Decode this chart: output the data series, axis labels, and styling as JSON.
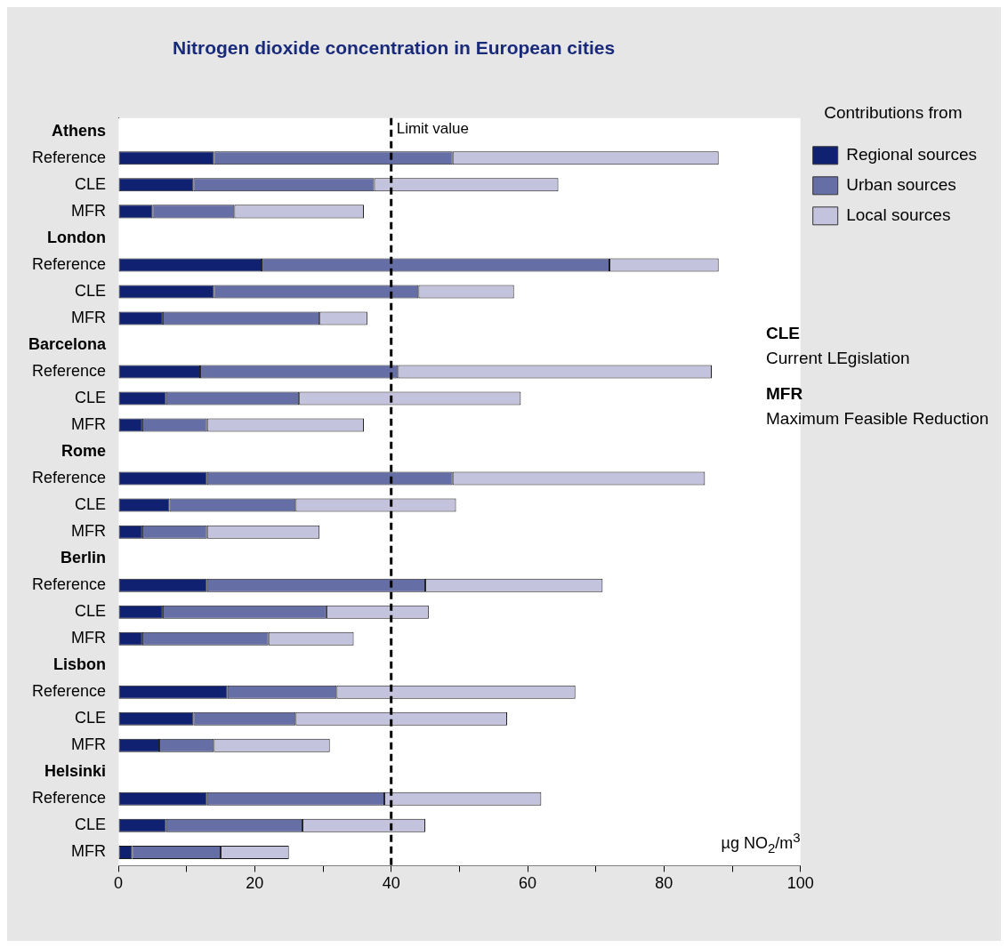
{
  "chart_data": {
    "type": "bar",
    "orientation": "horizontal",
    "stacked": true,
    "title": "Nitrogen dioxide concentration in European cities",
    "xlabel": "µg NO$_{2}$/m$^{3}$",
    "legend_title": "Contributions from",
    "legend": "right",
    "categories": [
      "Athens",
      "Reference",
      "CLE",
      "MFR",
      "London",
      "Reference",
      "CLE",
      "MFR",
      "Barcelona",
      "Reference",
      "CLE",
      "MFR",
      "Rome",
      "Reference",
      "CLE",
      "MFR",
      "Berlin",
      "Reference",
      "CLE",
      "MFR",
      "Lisbon",
      "Reference",
      "CLE",
      "MFR",
      "Helsinki",
      "Reference",
      "CLE",
      "MFR"
    ],
    "series": [
      {
        "name": "Regional sources",
        "color": "#0f2170",
        "values": [
          null,
          14,
          11,
          5,
          null,
          21,
          14,
          6.5,
          null,
          12,
          7,
          3.5,
          null,
          13,
          7.5,
          3.5,
          null,
          13,
          6.5,
          3.5,
          null,
          16,
          11,
          6,
          null,
          13,
          7,
          2
        ]
      },
      {
        "name": "Urban sources",
        "color": "#666ea6",
        "values": [
          null,
          35,
          26.5,
          12,
          null,
          51,
          30,
          23,
          null,
          29,
          19.5,
          9.5,
          null,
          36,
          18.5,
          9.5,
          null,
          32,
          24,
          18.5,
          null,
          16,
          15,
          8,
          null,
          26,
          20,
          13
        ]
      },
      {
        "name": "Local sources",
        "color": "#c4c3dd",
        "values": [
          null,
          39,
          27,
          19,
          null,
          16,
          14,
          7,
          null,
          46,
          32.5,
          23,
          null,
          37,
          23.5,
          16.5,
          null,
          26,
          15,
          12.5,
          null,
          35,
          31,
          17,
          null,
          23,
          18,
          10
        ]
      }
    ],
    "xlim": [
      0,
      100
    ],
    "xticks": [
      0,
      {
        "value": 10,
        "label": null
      },
      20,
      {
        "value": 30,
        "label": null
      },
      40,
      {
        "value": 50,
        "label": null
      },
      60,
      {
        "value": 70,
        "label": null
      },
      80,
      {
        "value": 90,
        "label": null
      },
      100
    ],
    "ref_lines": [
      {
        "axis": "x",
        "value": 40,
        "label": "Limit value",
        "line_style": "dashed",
        "color": "#000000"
      }
    ],
    "annotations": [
      "CLE",
      "Current LEgislation",
      "MFR",
      "Maximum Feasible Reduction"
    ]
  }
}
